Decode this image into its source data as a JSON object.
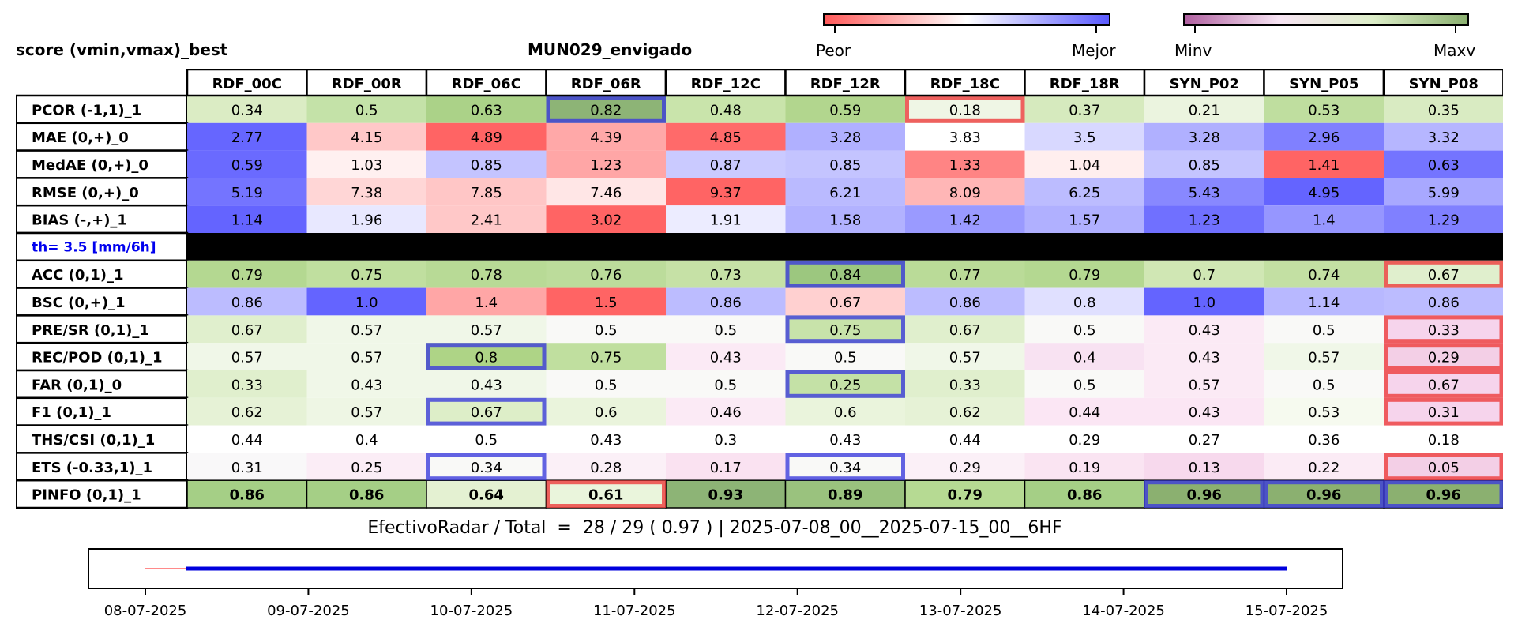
{
  "header": {
    "title": "score (vmin,vmax)_best",
    "station": "MUN029_envigado",
    "colorbar1": {
      "left_label": "Peor",
      "right_label": "Mejor",
      "colors": [
        "#ff5a5a",
        "#ffffff",
        "#5a5aff"
      ]
    },
    "colorbar2": {
      "left_label": "Minv",
      "right_label": "Maxv",
      "colors": [
        "#b060a0",
        "#f7e4f3",
        "#dcedc8",
        "#8bb070"
      ]
    }
  },
  "colors": {
    "best_outline": "#3c3cdc",
    "worst_outline": "#ee3c3c",
    "separator": "#000000",
    "threshold_text": "#0000ee"
  },
  "chart_data": {
    "type": "table",
    "columns": [
      "RDF_00C",
      "RDF_00R",
      "RDF_06C",
      "RDF_06R",
      "RDF_12C",
      "RDF_12R",
      "RDF_18C",
      "RDF_18R",
      "SYN_P02",
      "SYN_P05",
      "SYN_P08"
    ],
    "rows": [
      {
        "label": "PCOR (-1,1)_1",
        "values": [
          "0.34",
          "0.5",
          "0.63",
          "0.82",
          "0.48",
          "0.59",
          "0.18",
          "0.37",
          "0.21",
          "0.53",
          "0.35"
        ],
        "colors": [
          "#dbecc4",
          "#c4e2a8",
          "#abd288",
          "#8db476",
          "#c9e4ab",
          "#b2d68e",
          "#eff6e5",
          "#d6eabe",
          "#ebf4df",
          "#bfde9f",
          "#d9ebc2"
        ],
        "best": [
          3
        ],
        "worst": [
          6
        ]
      },
      {
        "label": "MAE (0,+)_0",
        "values": [
          "2.77",
          "4.15",
          "4.89",
          "4.39",
          "4.85",
          "3.28",
          "3.83",
          "3.5",
          "3.28",
          "2.96",
          "3.32"
        ],
        "colors": [
          "#6666ff",
          "#ffc8c8",
          "#ff6464",
          "#ffa8a8",
          "#ff6a6a",
          "#b0b0ff",
          "#ffffff",
          "#d8d8ff",
          "#b0b0ff",
          "#8080ff",
          "#b6b6ff"
        ],
        "best": [],
        "worst": []
      },
      {
        "label": "MedAE (0,+)_0",
        "values": [
          "0.59",
          "1.03",
          "0.85",
          "1.23",
          "0.87",
          "0.85",
          "1.33",
          "1.04",
          "0.85",
          "1.41",
          "0.63"
        ],
        "colors": [
          "#6a6aff",
          "#fff0f0",
          "#c4c4ff",
          "#ffa6a6",
          "#cacaff",
          "#c4c4ff",
          "#ff8484",
          "#ffeeee",
          "#c4c4ff",
          "#ff6464",
          "#7474ff"
        ],
        "best": [],
        "worst": []
      },
      {
        "label": "RMSE (0,+)_0",
        "values": [
          "5.19",
          "7.38",
          "7.85",
          "7.46",
          "9.37",
          "6.21",
          "8.09",
          "6.25",
          "5.43",
          "4.95",
          "5.99"
        ],
        "colors": [
          "#7474ff",
          "#ffd6d6",
          "#ffc6c6",
          "#ffe6e6",
          "#ff6464",
          "#babaff",
          "#ffb6b6",
          "#bcbcff",
          "#8888ff",
          "#6464ff",
          "#a8a8ff"
        ],
        "best": [],
        "worst": []
      },
      {
        "label": "BIAS (-,+)_1",
        "values": [
          "1.14",
          "1.96",
          "2.41",
          "3.02",
          "1.91",
          "1.58",
          "1.42",
          "1.57",
          "1.23",
          "1.4",
          "1.29"
        ],
        "colors": [
          "#6464ff",
          "#e8e8ff",
          "#ffc8c8",
          "#ff6464",
          "#ececff",
          "#b2b2ff",
          "#9a9aff",
          "#b0b0ff",
          "#7070ff",
          "#9696ff",
          "#8080ff"
        ],
        "best": [],
        "worst": []
      },
      {
        "label": "th= 3.5 [mm/6h]",
        "separator": true,
        "values": [],
        "colors": [],
        "best": [],
        "worst": []
      },
      {
        "label": "ACC (0,1)_1",
        "values": [
          "0.79",
          "0.75",
          "0.78",
          "0.76",
          "0.73",
          "0.84",
          "0.77",
          "0.79",
          "0.7",
          "0.74",
          "0.67"
        ],
        "colors": [
          "#b4d891",
          "#c0df9f",
          "#b8da96",
          "#bcdc9b",
          "#c6e1a6",
          "#9cc77f",
          "#badb98",
          "#b4d891",
          "#d0e7b4",
          "#c3e0a3",
          "#e0efcd"
        ],
        "best": [
          5
        ],
        "worst": [
          10
        ]
      },
      {
        "label": "BSC (0,+)_1",
        "values": [
          "0.86",
          "1.0",
          "1.4",
          "1.5",
          "0.86",
          "0.67",
          "0.86",
          "0.8",
          "1.0",
          "1.14",
          "0.86"
        ],
        "colors": [
          "#bcbcff",
          "#6464ff",
          "#ffa6a6",
          "#ff6464",
          "#bcbcff",
          "#ffd0d0",
          "#bcbcff",
          "#e0e0ff",
          "#6464ff",
          "#b8b8ff",
          "#bcbcff"
        ],
        "best": [],
        "worst": []
      },
      {
        "label": "PRE/SR (0,1)_1",
        "values": [
          "0.67",
          "0.57",
          "0.57",
          "0.5",
          "0.5",
          "0.75",
          "0.67",
          "0.5",
          "0.43",
          "0.5",
          "0.33"
        ],
        "colors": [
          "#e0efcd",
          "#f0f7e8",
          "#f0f7e8",
          "#f9f9f7",
          "#f9f9f7",
          "#c8e3aa",
          "#e0efcd",
          "#f9f9f7",
          "#fbeaf5",
          "#f9f9f7",
          "#f6d4ec"
        ],
        "best": [
          5
        ],
        "worst": [
          10
        ]
      },
      {
        "label": "REC/POD (0,1)_1",
        "values": [
          "0.57",
          "0.57",
          "0.8",
          "0.75",
          "0.43",
          "0.5",
          "0.57",
          "0.4",
          "0.43",
          "0.57",
          "0.29"
        ],
        "colors": [
          "#f0f7e8",
          "#f0f7e8",
          "#aed486",
          "#c0df9f",
          "#fbeaf5",
          "#f9f9f7",
          "#f0f7e8",
          "#f8e2f2",
          "#fbeaf5",
          "#f0f7e8",
          "#f3cfe6"
        ],
        "best": [
          2
        ],
        "worst": [
          10
        ]
      },
      {
        "label": "FAR (0,1)_0",
        "values": [
          "0.33",
          "0.43",
          "0.43",
          "0.5",
          "0.5",
          "0.25",
          "0.33",
          "0.5",
          "0.57",
          "0.5",
          "0.67"
        ],
        "colors": [
          "#e0efcd",
          "#f0f7e8",
          "#f0f7e8",
          "#f9f9f7",
          "#f9f9f7",
          "#c4e1a6",
          "#e0efcd",
          "#f9f9f7",
          "#fbeaf5",
          "#f9f9f7",
          "#f6d4ec"
        ],
        "best": [
          5
        ],
        "worst": [
          10
        ]
      },
      {
        "label": "F1 (0,1)_1",
        "values": [
          "0.62",
          "0.57",
          "0.67",
          "0.6",
          "0.46",
          "0.6",
          "0.62",
          "0.44",
          "0.43",
          "0.53",
          "0.31"
        ],
        "colors": [
          "#e6f2d6",
          "#eef6e4",
          "#ddeec8",
          "#eaf4dc",
          "#fbeaf5",
          "#eaf4dc",
          "#e6f2d6",
          "#fbe6f4",
          "#fbe6f4",
          "#f6faef",
          "#f6d4ec"
        ],
        "best": [
          2
        ],
        "worst": [
          10
        ]
      },
      {
        "label": "THS/CSI (0,1)_1",
        "values": [
          "0.44",
          "0.4",
          "0.5",
          "0.43",
          "0.3",
          "0.43",
          "0.44",
          "0.29",
          "0.27",
          "0.36",
          "0.18"
        ],
        "colors": [
          "#ffffff",
          "#ffffff",
          "#ffffff",
          "#ffffff",
          "#ffffff",
          "#ffffff",
          "#ffffff",
          "#ffffff",
          "#ffffff",
          "#ffffff",
          "#ffffff"
        ],
        "best": [],
        "worst": []
      },
      {
        "label": "ETS (-0.33,1)_1",
        "values": [
          "0.31",
          "0.25",
          "0.34",
          "0.28",
          "0.17",
          "0.34",
          "0.29",
          "0.19",
          "0.13",
          "0.22",
          "0.05"
        ],
        "colors": [
          "#f9f8f9",
          "#fbedf6",
          "#f9f9f7",
          "#fbf0f7",
          "#fae2f1",
          "#f9f9f7",
          "#fbf0f7",
          "#fae4f2",
          "#f7d9ed",
          "#fbebf5",
          "#f3cfe6"
        ],
        "best": [
          2,
          5
        ],
        "worst": [
          10
        ]
      },
      {
        "label": "PINFO (0,1)_1",
        "bold": true,
        "values": [
          "0.86",
          "0.86",
          "0.64",
          "0.61",
          "0.93",
          "0.89",
          "0.79",
          "0.86",
          "0.96",
          "0.96",
          "0.96"
        ],
        "colors": [
          "#a5cf86",
          "#a5cf86",
          "#e4f1d2",
          "#eaf5dc",
          "#8db476",
          "#9ac27e",
          "#b6da93",
          "#a5cf86",
          "#8bb070",
          "#8bb070",
          "#8bb070"
        ],
        "best": [
          8,
          9,
          10
        ],
        "worst": [
          3
        ]
      }
    ],
    "timeline": {
      "x_ticks": [
        "08-07-2025",
        "09-07-2025",
        "10-07-2025",
        "11-07-2025",
        "12-07-2025",
        "13-07-2025",
        "14-07-2025",
        "15-07-2025"
      ],
      "x_range": [
        "2025-07-08 00:00",
        "2025-07-15 00:00"
      ],
      "missing_segment": [
        "2025-07-08 00:00",
        "2025-07-08 06:00"
      ],
      "effective_segment": [
        "2025-07-08 06:00",
        "2025-07-15 00:00"
      ],
      "missing_color": "#ff6464",
      "effective_color": "#0000dd"
    }
  },
  "footer": {
    "summary": "EfectivoRadar / Total  =  28 / 29 ( 0.97 ) | 2025-07-08_00__2025-07-15_00__6HF"
  }
}
